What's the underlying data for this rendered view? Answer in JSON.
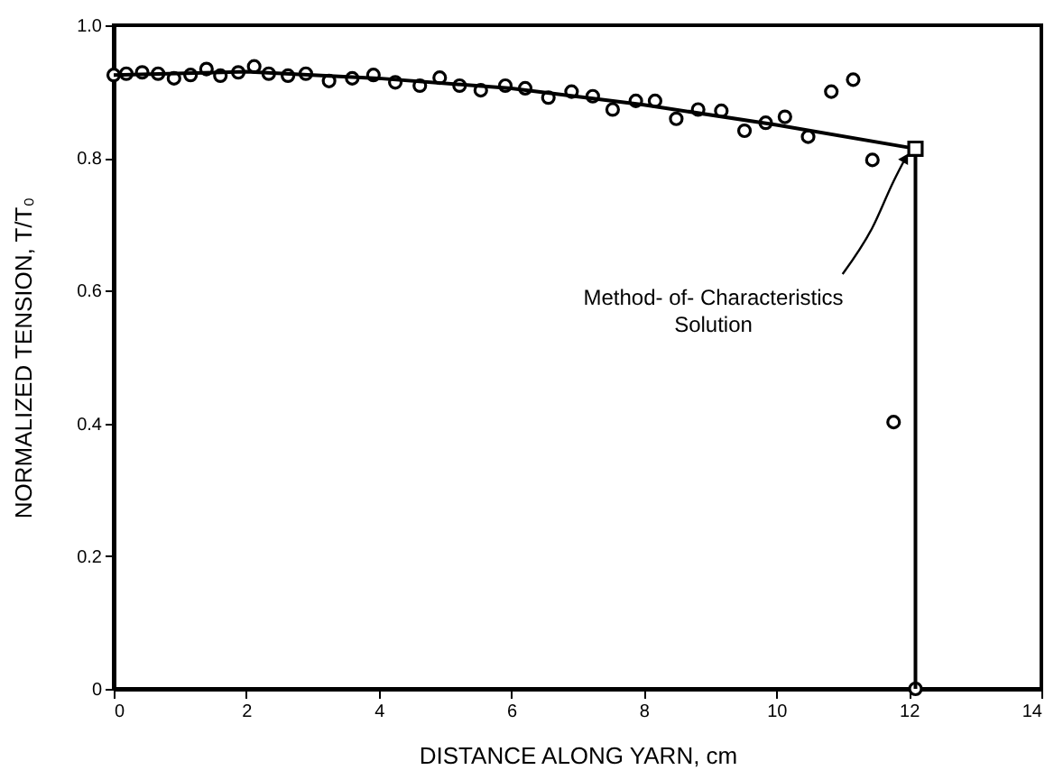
{
  "chart_data": {
    "type": "scatter",
    "xlabel": "DISTANCE ALONG YARN, cm",
    "ylabel": "NORMALIZED TENSION, T/T₀",
    "xlim": [
      0,
      14
    ],
    "xticks": [
      0,
      2,
      4,
      6,
      8,
      10,
      12,
      14
    ],
    "ylim": [
      0,
      1
    ],
    "yticks": [
      0,
      0.2,
      0.4,
      0.6,
      0.8,
      {
        "value": 1,
        "label": "1.0"
      }
    ],
    "grid": false,
    "annotations": [
      {
        "text": "Method- of- Characteristics Solution",
        "x": 11.95,
        "y": 0.8
      }
    ],
    "series": [
      {
        "marker": "circle",
        "color": "#000000",
        "x": [
          0,
          0.19,
          0.43,
          0.67,
          0.91,
          1.16,
          1.4,
          1.61,
          1.88,
          2.12,
          2.34,
          2.63,
          2.9,
          3.25,
          3.6,
          3.92,
          4.25,
          4.62,
          4.92,
          5.22,
          5.54,
          5.91,
          6.21,
          6.56,
          6.91,
          7.23,
          7.53,
          7.88,
          8.17,
          8.49,
          8.82,
          9.17,
          9.52,
          9.84,
          10.13,
          10.48,
          10.83,
          11.16,
          11.45,
          11.77,
          12.1
        ],
        "values": [
          0.925,
          0.927,
          0.929,
          0.927,
          0.92,
          0.925,
          0.934,
          0.924,
          0.929,
          0.938,
          0.927,
          0.924,
          0.927,
          0.916,
          0.92,
          0.925,
          0.914,
          0.909,
          0.921,
          0.909,
          0.902,
          0.909,
          0.905,
          0.891,
          0.9,
          0.893,
          0.873,
          0.886,
          0.886,
          0.859,
          0.873,
          0.871,
          0.841,
          0.853,
          0.862,
          0.832,
          0.9,
          0.918,
          0.797,
          0.402,
          0
        ]
      },
      {
        "type": "line",
        "marker": "none",
        "color": "#000000",
        "x": [
          0,
          2,
          4,
          6,
          8,
          10,
          12.1,
          12.1
        ],
        "values": [
          0.925,
          0.93,
          0.92,
          0.905,
          0.88,
          0.85,
          0.814,
          0
        ]
      },
      {
        "type": "scatter",
        "marker": "square",
        "color": "#000000",
        "x": [
          12.1
        ],
        "values": [
          0.814
        ]
      }
    ]
  }
}
